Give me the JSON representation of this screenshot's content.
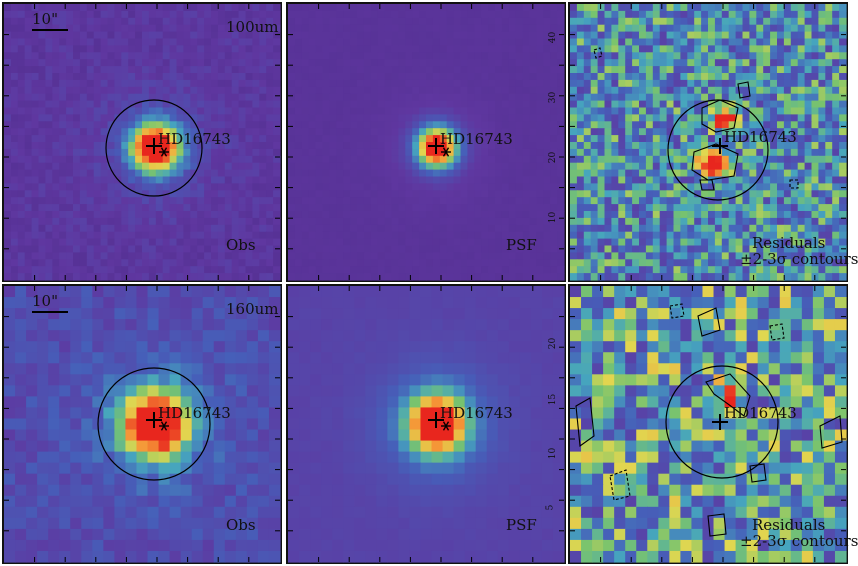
{
  "rows": [
    {
      "band": "100um",
      "scale_bar": "10\"",
      "panels": [
        {
          "kind": "obs",
          "source": "HD16743",
          "label": "Obs",
          "band": "100um",
          "scale_bar": "10\""
        },
        {
          "kind": "psf",
          "source": "HD16743",
          "label": "PSF"
        },
        {
          "kind": "res",
          "source": "HD16743",
          "label": "Residuals",
          "contour_label": "±2-3σ contours"
        }
      ],
      "y_ticks": [
        "10",
        "20",
        "30",
        "40"
      ]
    },
    {
      "band": "160um",
      "scale_bar": "10\"",
      "panels": [
        {
          "kind": "obs",
          "source": "HD16743",
          "label": "Obs",
          "band": "160um",
          "scale_bar": "10\""
        },
        {
          "kind": "psf",
          "source": "HD16743",
          "label": "PSF"
        },
        {
          "kind": "res",
          "source": "HD16743",
          "label": "Residuals",
          "contour_label": "±2-3σ contours"
        }
      ],
      "y_ticks": [
        "5",
        "10",
        "15",
        "20"
      ]
    }
  ],
  "colors": {
    "background_low": "#5a2a88",
    "peak": "#e8261e",
    "orange": "#f5a03a",
    "yellow": "#e8d84a",
    "green": "#7ec46a",
    "cyan": "#3fb0b8",
    "blue": "#4a6fc0",
    "contour": "#000000"
  }
}
